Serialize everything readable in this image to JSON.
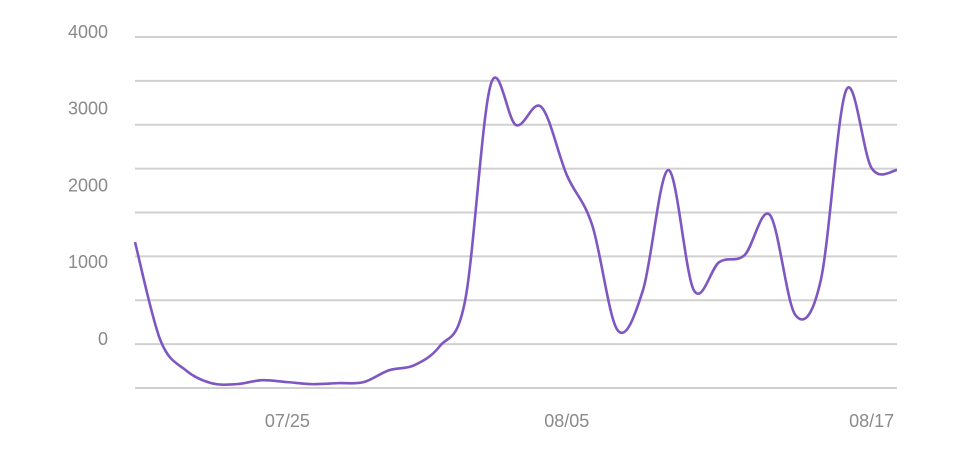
{
  "chart_data": {
    "type": "line",
    "categories": [
      null,
      null,
      null,
      null,
      null,
      null,
      "07/25",
      null,
      null,
      null,
      null,
      null,
      null,
      null,
      null,
      null,
      null,
      "08/05",
      null,
      null,
      null,
      null,
      null,
      null,
      null,
      null,
      null,
      null,
      null,
      "08/17",
      null
    ],
    "series": [
      {
        "color": "#7e57c2",
        "values": [
          1329,
          50,
          -340,
          -508,
          -521,
          -470,
          -495,
          -521,
          -508,
          -495,
          -340,
          -274,
          -26,
          573,
          3375,
          2853,
          3088,
          2202,
          1550,
          182,
          704,
          2267,
          704,
          1068,
          1160,
          1681,
          378,
          834,
          3309,
          2293,
          2267
        ]
      }
    ],
    "ylim": [
      -571.4,
      4000
    ],
    "yticks": [
      0,
      1000,
      2000,
      3000,
      4000
    ],
    "ygrid": [
      -571.4,
      0,
      571.4,
      1142.9,
      1714.3,
      2285.7,
      2857.1,
      3428.6,
      4000
    ],
    "grid": true
  }
}
